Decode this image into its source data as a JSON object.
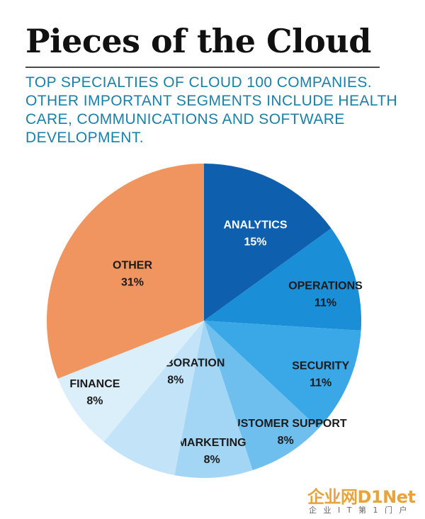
{
  "header": {
    "title": "Pieces of the Cloud",
    "subtitle": "TOP SPECIALTIES OF CLOUD 100 COMPANIES. OTHER IMPORTANT SEGMENTS INCLUDE HEALTH CARE, COMMUNICATIONS AND SOFTWARE DEVELOPMENT."
  },
  "watermark": {
    "main": "企业网D1Net",
    "sub": "企 业 I T 第 1 门 户"
  },
  "colors": {
    "title": "#111111",
    "subtitle": "#1a80a8",
    "other": "#f0955f",
    "analytics": "#0e5fae"
  },
  "chart_data": {
    "type": "pie",
    "title": "Pieces of the Cloud",
    "start": "12 o'clock",
    "direction": "clockwise",
    "slices": [
      {
        "label": "ANALYTICS",
        "value": 15,
        "display": "15%",
        "color": "#0e5fae",
        "text_color": "#ffffff"
      },
      {
        "label": "OPERATIONS",
        "value": 11,
        "display": "11%",
        "color": "#1b8ed8",
        "text_color": "#1b1b1b"
      },
      {
        "label": "SECURITY",
        "value": 11,
        "display": "11%",
        "color": "#3aa7e6",
        "text_color": "#1b1b1b"
      },
      {
        "label": "CUSTOMER SUPPORT",
        "value": 8,
        "display": "8%",
        "color": "#6ebfee",
        "text_color": "#1b1b1b"
      },
      {
        "label": "MARKETING",
        "value": 8,
        "display": "8%",
        "color": "#a3d6f5",
        "text_color": "#1b1b1b"
      },
      {
        "label": "COLLABORATION",
        "value": 8,
        "display": "8%",
        "color": "#c2e3f8",
        "text_color": "#1b1b1b"
      },
      {
        "label": "FINANCE",
        "value": 8,
        "display": "8%",
        "color": "#dbeffb",
        "text_color": "#1b1b1b"
      },
      {
        "label": "OTHER",
        "value": 31,
        "display": "31%",
        "color": "#f0955f",
        "text_color": "#1b1b1b"
      }
    ]
  }
}
